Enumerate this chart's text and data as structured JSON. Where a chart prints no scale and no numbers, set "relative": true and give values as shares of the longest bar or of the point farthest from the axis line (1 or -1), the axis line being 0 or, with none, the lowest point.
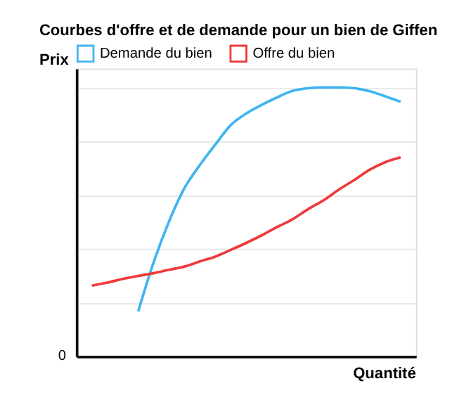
{
  "chart_data": {
    "type": "line",
    "title": "Courbes d'offre et de demande pour un bien de Giffen",
    "xlabel": "Quantité",
    "ylabel": "Prix",
    "relative": true,
    "grid": "y",
    "legend": "top",
    "tick_labels": false,
    "annotations": [
      "0"
    ],
    "categories": [
      null,
      null,
      null,
      null,
      null,
      null,
      null,
      null,
      null,
      null,
      null,
      null,
      null,
      null,
      null,
      null,
      null,
      null,
      null,
      null,
      null
    ],
    "series": [
      {
        "name": "Demande du bien",
        "color": "#3fb4f0",
        "values": [
          null,
          null,
          null,
          0.167,
          0.35,
          0.502,
          0.626,
          0.712,
          0.788,
          0.86,
          0.903,
          0.935,
          0.963,
          0.987,
          0.997,
          1.0,
          1.0,
          0.997,
          0.986,
          0.967,
          0.947
        ]
      },
      {
        "name": "Offre du bien",
        "color": "#ef3a3a",
        "values": [
          0.263,
          0.274,
          0.288,
          0.299,
          0.309,
          0.322,
          0.334,
          0.353,
          0.371,
          0.396,
          0.422,
          0.45,
          0.481,
          0.51,
          0.547,
          0.58,
          0.62,
          0.656,
          0.694,
          0.722,
          0.74
        ]
      }
    ]
  }
}
